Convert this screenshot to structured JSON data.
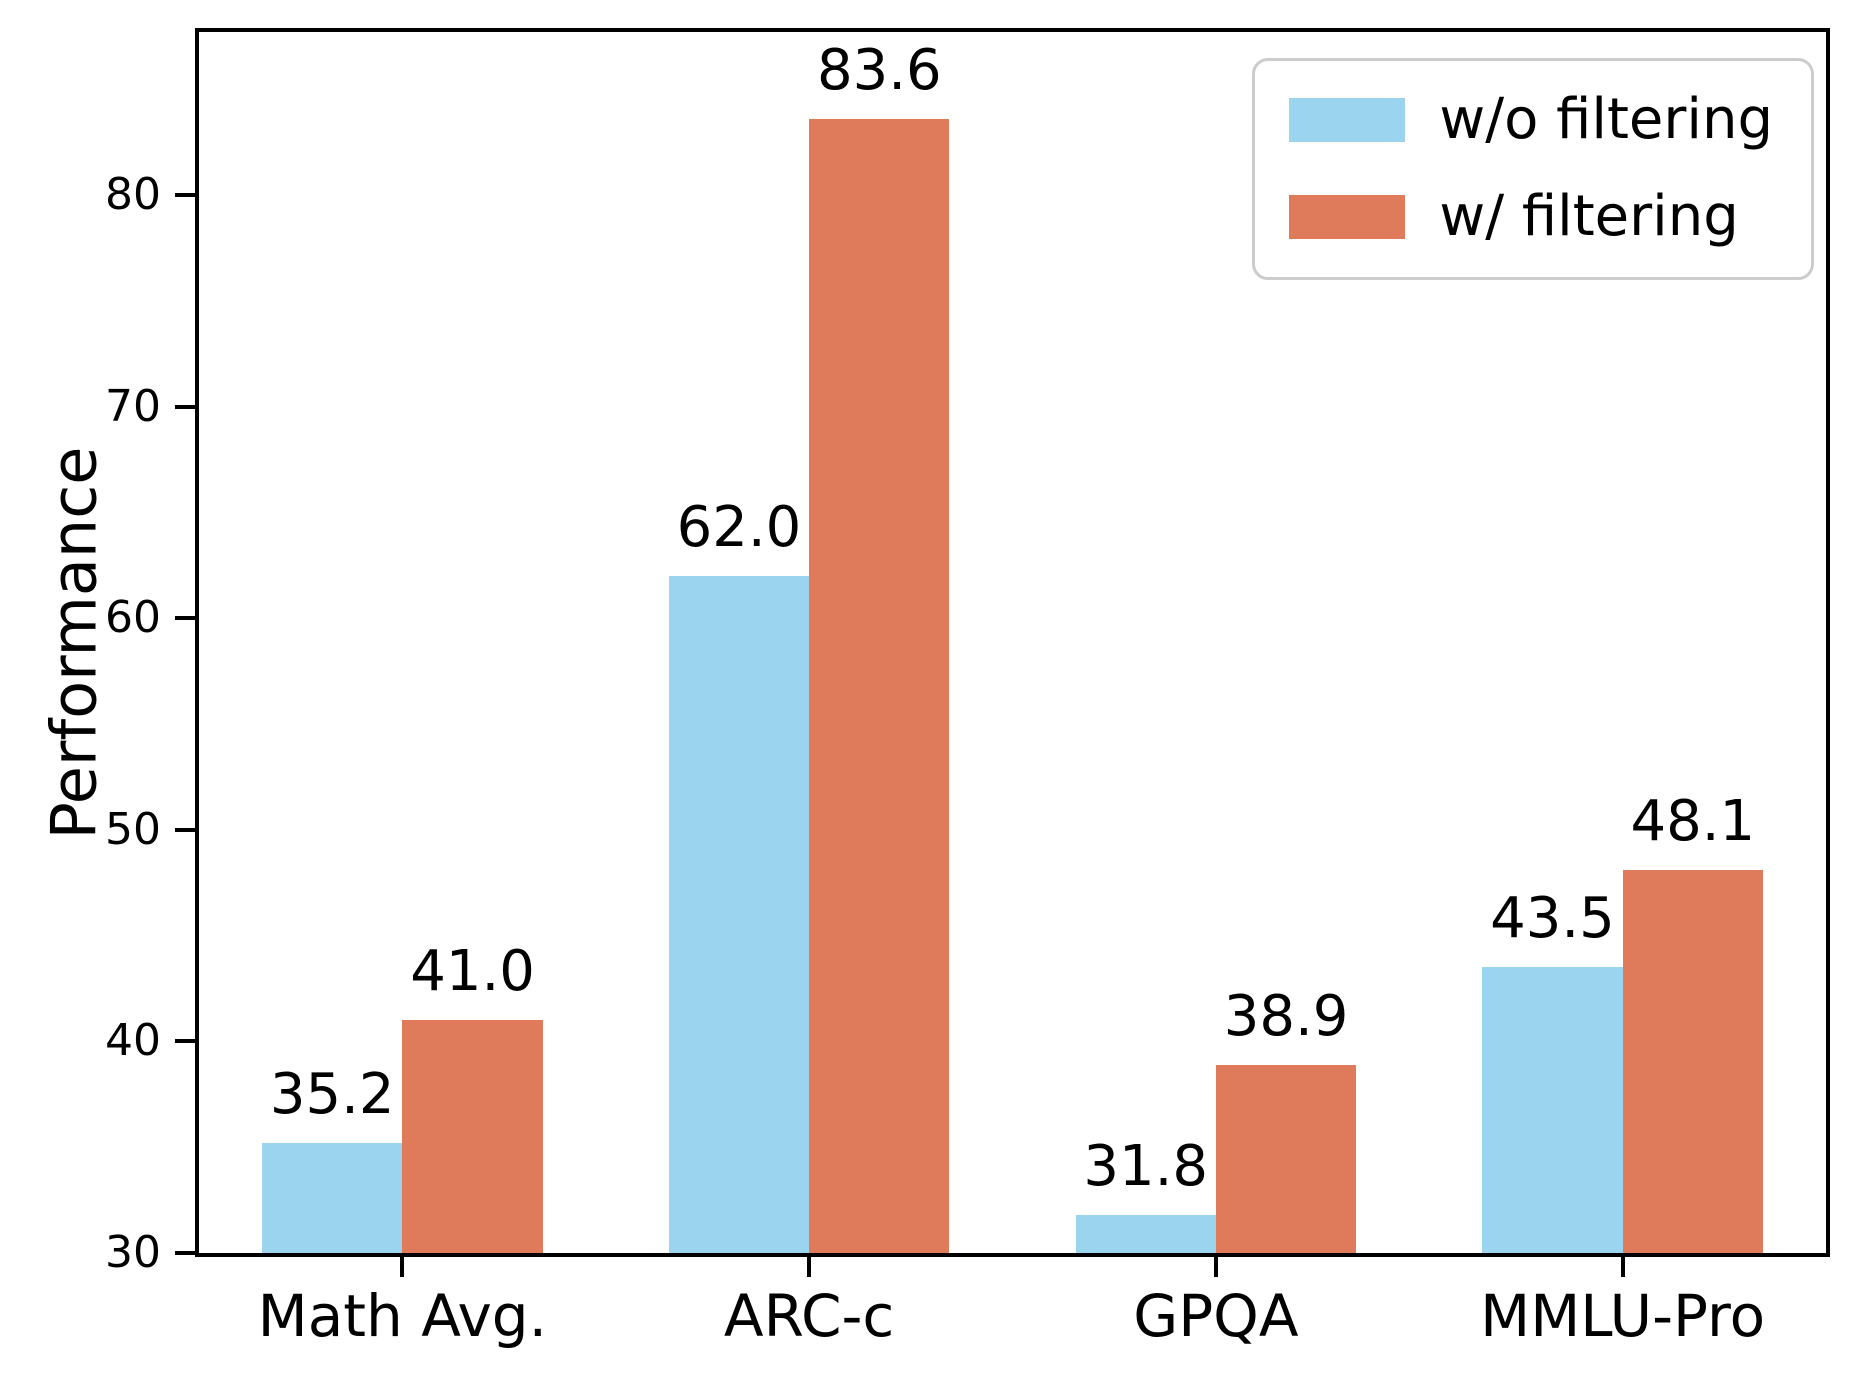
{
  "chart_data": {
    "type": "bar",
    "title": "",
    "xlabel": "",
    "ylabel": "Performance",
    "categories": [
      "Math Avg.",
      "ARC-c",
      "GPQA",
      "MMLU-Pro"
    ],
    "series": [
      {
        "name": "w/o filtering",
        "color": "#9BD4EF",
        "values": [
          35.2,
          62.0,
          31.8,
          43.5
        ]
      },
      {
        "name": "w/ filtering",
        "color": "#DF7A5B",
        "values": [
          41.0,
          83.6,
          38.9,
          48.1
        ]
      }
    ],
    "ylim": [
      30,
      87.7
    ],
    "yticks": [
      30,
      40,
      50,
      60,
      70,
      80
    ],
    "grid": false,
    "legend_position": "upper right",
    "bar_width_fraction": 0.345,
    "value_label_decimals": 1
  },
  "colors": {
    "axis": "#000000",
    "text": "#000000",
    "legend_border": "#cccccc",
    "background": "#ffffff"
  }
}
